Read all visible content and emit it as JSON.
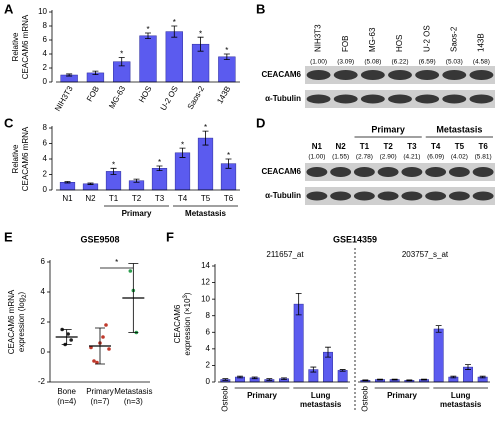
{
  "chart_data": [
    {
      "panel": "A",
      "type": "bar",
      "ylabel": [
        "Relative",
        "CEACAM6 mRNA"
      ],
      "categories": [
        "NIH3T3",
        "FOB",
        "MG-63",
        "HOS",
        "U-2 OS",
        "Saos-2",
        "143B"
      ],
      "values": [
        1.0,
        1.3,
        2.9,
        6.6,
        7.2,
        5.4,
        3.6
      ],
      "errors": [
        0.15,
        0.25,
        0.6,
        0.4,
        0.8,
        1.0,
        0.4
      ],
      "significance": [
        null,
        null,
        "*",
        "*",
        "*",
        "*",
        "*"
      ],
      "rotate_labels": true,
      "color": "#5b5bef",
      "ylim": [
        0,
        10
      ],
      "yticks": [
        0,
        2,
        4,
        6,
        8,
        10
      ]
    },
    {
      "panel": "C",
      "type": "bar",
      "ylabel": [
        "Relative",
        "CEACAM6 mRNA"
      ],
      "categories": [
        "N1",
        "N2",
        "T1",
        "T2",
        "T3",
        "T4",
        "T5",
        "T6"
      ],
      "values": [
        1.0,
        0.8,
        2.4,
        1.2,
        2.8,
        4.8,
        6.7,
        3.4
      ],
      "errors": [
        0.1,
        0.1,
        0.4,
        0.2,
        0.3,
        0.6,
        0.9,
        0.6
      ],
      "significance": [
        null,
        null,
        "*",
        null,
        "*",
        "*",
        "*",
        "*"
      ],
      "groups": [
        {
          "label": "Primary",
          "span": [
            2,
            4
          ]
        },
        {
          "label": "Metastasis",
          "span": [
            5,
            7
          ]
        }
      ],
      "color": "#5b5bef",
      "ylim": [
        0,
        8
      ],
      "yticks": [
        0,
        2,
        4,
        6,
        8
      ]
    },
    {
      "panel": "E",
      "type": "dot",
      "title": "GSE9508",
      "ylabel": [
        "CEACAM6 mRNA",
        "expression (log",
        "2",
        ")"
      ],
      "ylabel_script": "sub",
      "categories": [
        "Bone",
        "Primary",
        "Metastasis"
      ],
      "counts": [
        "(n=4)",
        "(n=7)",
        "(n=3)"
      ],
      "colors": [
        "#222222",
        "#c0392b",
        "#2e9e4f"
      ],
      "points": [
        [
          1.5,
          0.5,
          1.2,
          0.8
        ],
        [
          0.3,
          -0.6,
          -0.7,
          0.6,
          1.0,
          1.8,
          0.2
        ],
        [
          5.4,
          4.1,
          1.3
        ]
      ],
      "means": [
        1.0,
        0.4,
        3.6
      ],
      "sd": [
        0.5,
        1.2,
        2.3
      ],
      "significance": {
        "label": "*",
        "between": [
          1,
          2
        ]
      },
      "ylim": [
        -2,
        6
      ],
      "yticks": [
        -2,
        0,
        2,
        4,
        6
      ]
    },
    {
      "panel": "F",
      "type": "probe-bar",
      "title": "GSE14359",
      "ylabel": [
        "CEACAM6",
        "expression (×10",
        "3",
        ")"
      ],
      "ylabel_script": "super",
      "probes": [
        {
          "name": "211657_at",
          "values": [
            0.3,
            0.6,
            0.5,
            0.3,
            0.4,
            9.4,
            1.5,
            3.6,
            1.4
          ],
          "errors": [
            0.1,
            0.1,
            0.1,
            0.1,
            0.1,
            1.3,
            0.3,
            0.6,
            0.1
          ]
        },
        {
          "name": "203757_s_at",
          "values": [
            0.2,
            0.3,
            0.3,
            0.2,
            0.3,
            6.4,
            0.6,
            1.8,
            0.6
          ],
          "errors": [
            0.05,
            0.05,
            0.05,
            0.05,
            0.05,
            0.4,
            0.1,
            0.3,
            0.1
          ]
        }
      ],
      "groups": [
        {
          "label": [
            "Osteob"
          ],
          "span": [
            0,
            0
          ],
          "rotate": true
        },
        {
          "label": [
            "Primary"
          ],
          "span": [
            1,
            4
          ]
        },
        {
          "label": [
            "Lung",
            "metastasis"
          ],
          "span": [
            5,
            8
          ]
        }
      ],
      "color": "#5b5bef",
      "ylim": [
        0,
        14
      ],
      "yticks": [
        0,
        2,
        4,
        6,
        8,
        10,
        12,
        14
      ]
    }
  ],
  "blots": [
    {
      "panel": "B",
      "columns": [
        "NIH3T3",
        "FOB",
        "MG-63",
        "HOS",
        "U-2 OS",
        "Saos-2",
        "143B"
      ],
      "ratios": [
        "(1.00)",
        "(3.09)",
        "(5.08)",
        "(6.22)",
        "(6.59)",
        "(5.03)",
        "(4.58)"
      ],
      "rows": [
        "CEACAM6",
        "α-Tubulin"
      ],
      "rotate_labels": true
    },
    {
      "panel": "D",
      "columns": [
        "N1",
        "N2",
        "T1",
        "T2",
        "T3",
        "T4",
        "T5",
        "T6"
      ],
      "ratios": [
        "(1.00)",
        "(1.55)",
        "(2.78)",
        "(2.90)",
        "(4.21)",
        "(6.09)",
        "(4.02)",
        "(5.81)"
      ],
      "rows": [
        "CEACAM6",
        "α-Tubulin"
      ],
      "groups": [
        {
          "label": "Primary",
          "span": [
            2,
            4
          ]
        },
        {
          "label": "Metastasis",
          "span": [
            5,
            7
          ]
        }
      ]
    }
  ]
}
